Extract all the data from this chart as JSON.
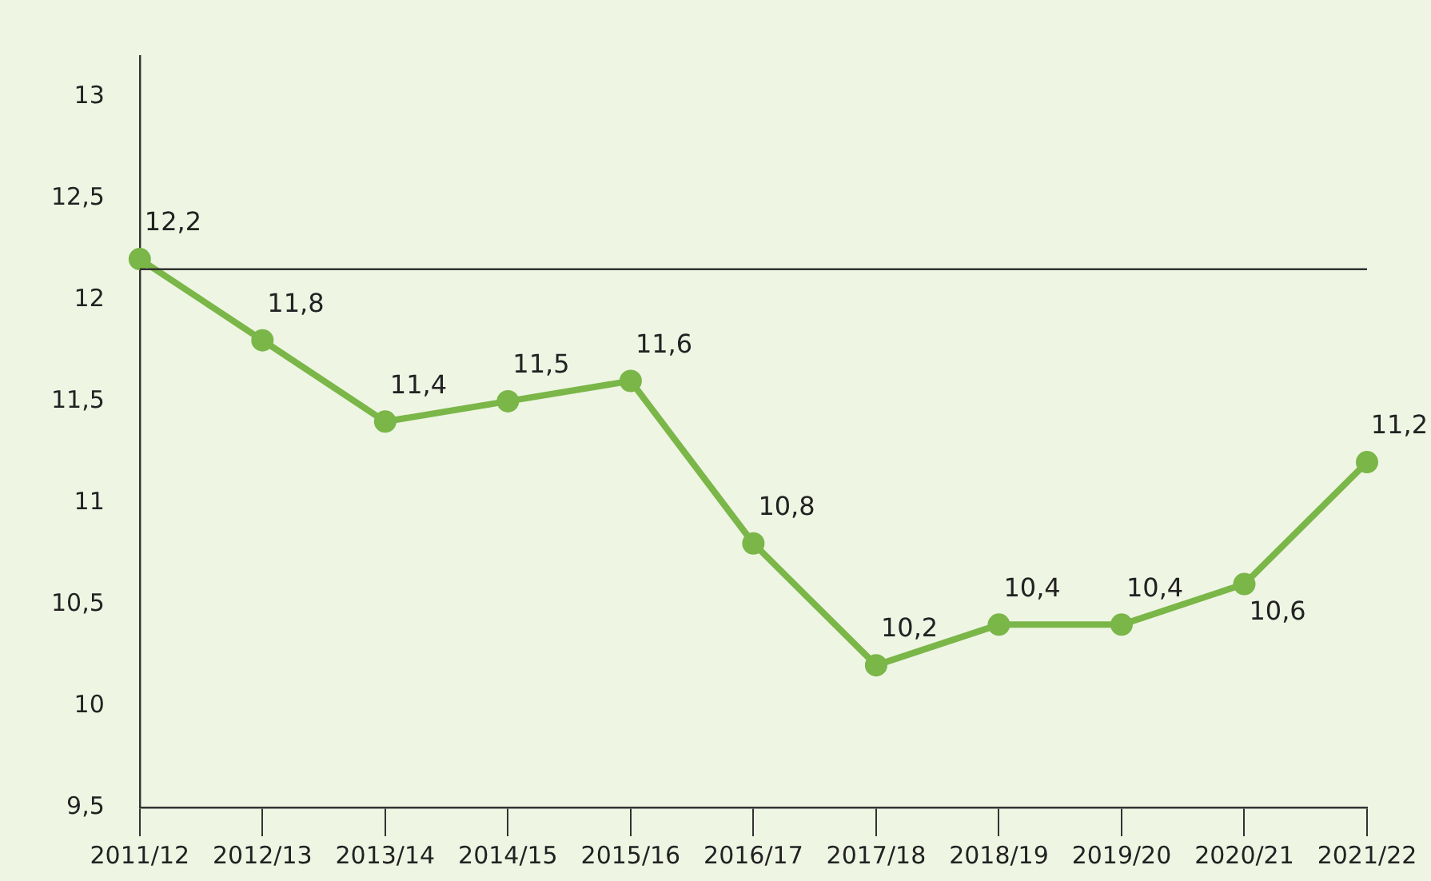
{
  "chart_data": {
    "type": "line",
    "categories": [
      "2011/12",
      "2012/13",
      "2013/14",
      "2014/15",
      "2015/16",
      "2016/17",
      "2017/18",
      "2018/19",
      "2019/20",
      "2020/21",
      "2021/22"
    ],
    "series": [
      {
        "color": "#7ab648",
        "values": [
          12.2,
          11.8,
          11.4,
          11.5,
          11.6,
          10.8,
          10.2,
          10.4,
          10.4,
          10.6,
          11.2
        ],
        "value_labels": [
          "12,2",
          "11,8",
          "11,4",
          "11,5",
          "11,6",
          "10,8",
          "10,2",
          "10,4",
          "10,4",
          "10,6",
          "11,2"
        ]
      }
    ],
    "ylim": [
      9.5,
      13.2
    ],
    "yticks": [
      {
        "value": 9.5,
        "label": "9,5"
      },
      {
        "value": 10,
        "label": "10"
      },
      {
        "value": 10.5,
        "label": "10,5"
      },
      {
        "value": 11,
        "label": "11"
      },
      {
        "value": 11.5,
        "label": "11,5"
      },
      {
        "value": 12,
        "label": "12"
      },
      {
        "value": 12.5,
        "label": "12,5"
      },
      {
        "value": 13,
        "label": "13"
      }
    ],
    "ref_lines": [
      {
        "axis": "y",
        "value": 12.15,
        "color": "#333333"
      }
    ],
    "grid": false,
    "legend": false,
    "marker": "circle",
    "line_style": "solid"
  }
}
